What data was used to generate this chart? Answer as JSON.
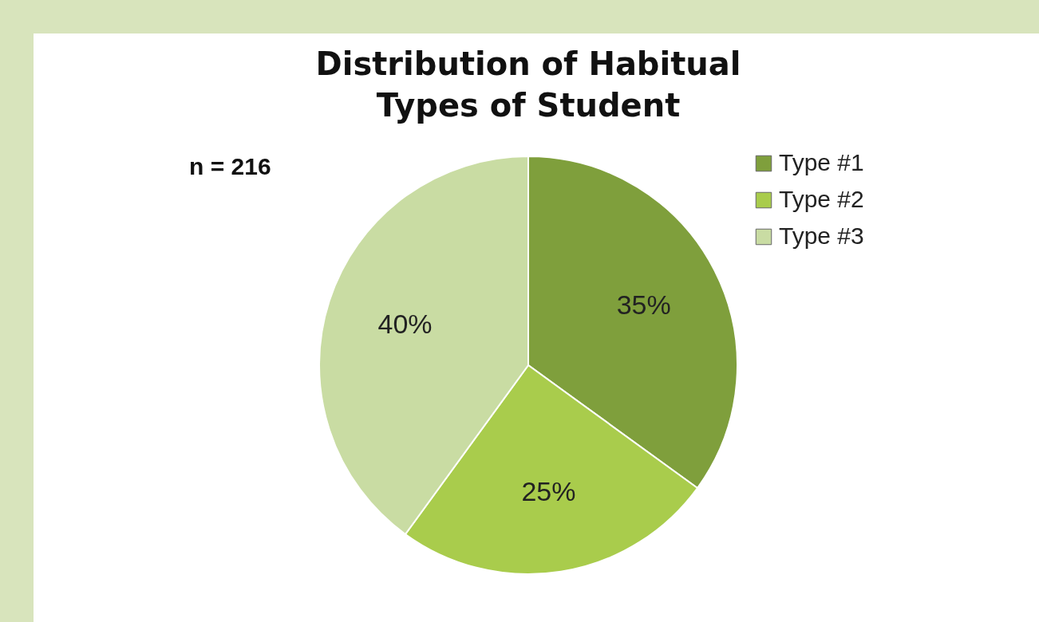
{
  "chart_data": {
    "type": "pie",
    "title": "Distribution of Habitual Types of Student",
    "categories": [
      "Type #1",
      "Type #2",
      "Type #3"
    ],
    "values": [
      35,
      25,
      40
    ],
    "colors": [
      "#7f9f3c",
      "#a9cc4c",
      "#c9dca3"
    ],
    "value_labels": [
      "35%",
      "25%",
      "40%"
    ],
    "annotations": [
      "n = 216"
    ],
    "legend": "right"
  }
}
